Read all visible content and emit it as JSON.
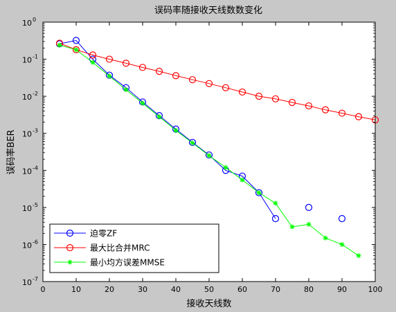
{
  "chart_data": {
    "type": "line",
    "title": "误码率随接收天线数数变化",
    "xlabel": "接收天线数",
    "ylabel": "误码率BER",
    "xlim": [
      0,
      100
    ],
    "ylim": [
      1e-07,
      1
    ],
    "yscale": "log",
    "x_ticks": [
      "0",
      "10",
      "20",
      "30",
      "40",
      "50",
      "60",
      "70",
      "80",
      "90",
      "100"
    ],
    "y_ticks": [
      {
        "base": "10",
        "exp": "0"
      },
      {
        "base": "10",
        "exp": "-1"
      },
      {
        "base": "10",
        "exp": "-2"
      },
      {
        "base": "10",
        "exp": "-3"
      },
      {
        "base": "10",
        "exp": "-4"
      },
      {
        "base": "10",
        "exp": "-5"
      },
      {
        "base": "10",
        "exp": "-6"
      },
      {
        "base": "10",
        "exp": "-7"
      }
    ],
    "grid": false,
    "legend_position": "bottom-left",
    "series": [
      {
        "name": "迫零ZF",
        "color": "#0000ff",
        "marker": "circle",
        "line_x": [
          5,
          10,
          15,
          20,
          25,
          30,
          35,
          40,
          45,
          50,
          55,
          60,
          65,
          70
        ],
        "line_y": [
          0.26,
          0.32,
          0.1,
          0.037,
          0.017,
          0.007,
          0.003,
          0.0013,
          0.00057,
          0.00026,
          0.0001,
          7e-05,
          2.5e-05,
          5e-06
        ],
        "points": [
          [
            5,
            0.26
          ],
          [
            10,
            0.32
          ],
          [
            15,
            0.1
          ],
          [
            20,
            0.037
          ],
          [
            25,
            0.017
          ],
          [
            30,
            0.007
          ],
          [
            35,
            0.003
          ],
          [
            40,
            0.0013
          ],
          [
            45,
            0.00057
          ],
          [
            50,
            0.00026
          ],
          [
            55,
            0.0001
          ],
          [
            60,
            7e-05
          ],
          [
            65,
            2.5e-05
          ],
          [
            70,
            5e-06
          ],
          [
            80,
            1e-05
          ],
          [
            90,
            5e-06
          ]
        ]
      },
      {
        "name": "最大比合并MRC",
        "color": "#ff0000",
        "marker": "circle",
        "line_x": [
          5,
          10,
          15,
          20,
          25,
          30,
          35,
          40,
          45,
          50,
          55,
          60,
          65,
          70,
          75,
          80,
          85,
          90,
          95,
          100
        ],
        "line_y": [
          0.27,
          0.18,
          0.13,
          0.1,
          0.078,
          0.06,
          0.047,
          0.036,
          0.028,
          0.022,
          0.017,
          0.013,
          0.01,
          0.0085,
          0.0068,
          0.0055,
          0.0043,
          0.0035,
          0.0028,
          0.0023
        ],
        "points": [
          [
            5,
            0.27
          ],
          [
            10,
            0.18
          ],
          [
            15,
            0.13
          ],
          [
            20,
            0.1
          ],
          [
            25,
            0.078
          ],
          [
            30,
            0.06
          ],
          [
            35,
            0.047
          ],
          [
            40,
            0.036
          ],
          [
            45,
            0.028
          ],
          [
            50,
            0.022
          ],
          [
            55,
            0.017
          ],
          [
            60,
            0.013
          ],
          [
            65,
            0.01
          ],
          [
            70,
            0.0085
          ],
          [
            75,
            0.0068
          ],
          [
            80,
            0.0055
          ],
          [
            85,
            0.0043
          ],
          [
            90,
            0.0035
          ],
          [
            95,
            0.0028
          ],
          [
            100,
            0.0023
          ]
        ]
      },
      {
        "name": "最小均方误差MMSE",
        "color": "#00ff00",
        "marker": "star",
        "line_x": [
          5,
          10,
          15,
          20,
          25,
          30,
          35,
          40,
          45,
          50,
          55,
          60,
          65,
          70,
          75,
          80,
          85,
          90,
          95
        ],
        "line_y": [
          0.24,
          0.18,
          0.082,
          0.035,
          0.015,
          0.0065,
          0.0028,
          0.0012,
          0.00055,
          0.00025,
          0.00012,
          5.5e-05,
          2.5e-05,
          1.3e-05,
          3e-06,
          3.5e-06,
          1.5e-06,
          1e-06,
          5e-07
        ],
        "points": [
          [
            5,
            0.24
          ],
          [
            10,
            0.18
          ],
          [
            15,
            0.082
          ],
          [
            20,
            0.035
          ],
          [
            25,
            0.015
          ],
          [
            30,
            0.0065
          ],
          [
            35,
            0.0028
          ],
          [
            40,
            0.0012
          ],
          [
            45,
            0.00055
          ],
          [
            50,
            0.00025
          ],
          [
            55,
            0.00012
          ],
          [
            60,
            5.5e-05
          ],
          [
            65,
            2.5e-05
          ],
          [
            70,
            1.3e-05
          ],
          [
            75,
            3e-06
          ],
          [
            80,
            3.5e-06
          ],
          [
            85,
            1.5e-06
          ],
          [
            90,
            1e-06
          ],
          [
            95,
            5e-07
          ]
        ]
      }
    ]
  }
}
